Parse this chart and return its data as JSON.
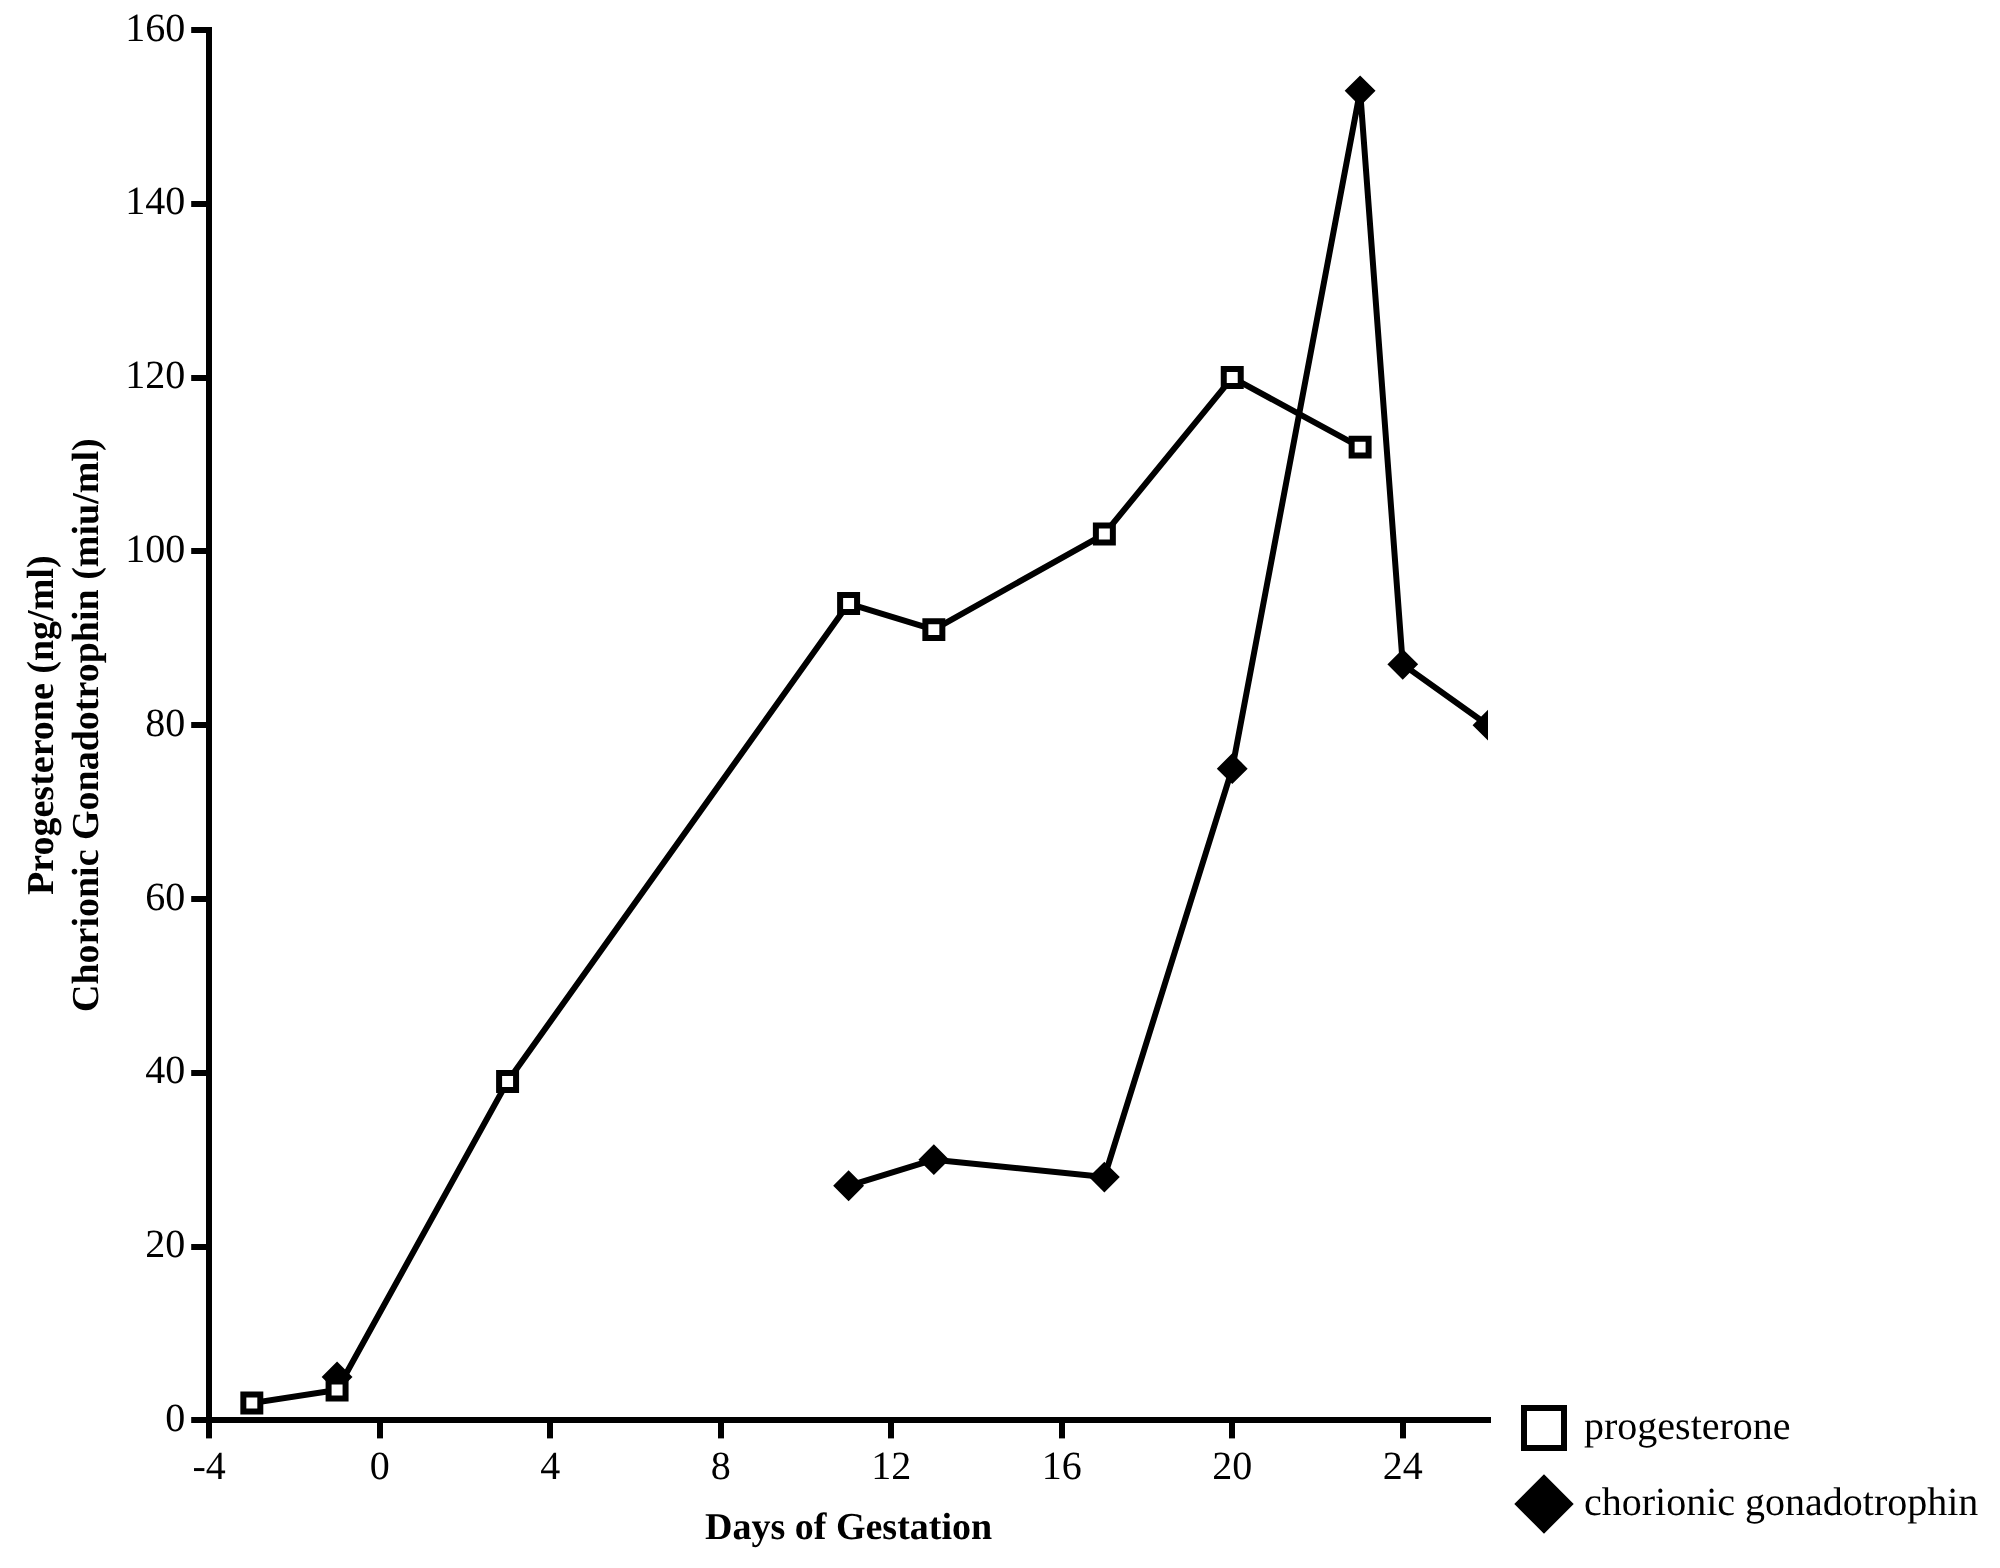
{
  "chart_data": {
    "type": "line",
    "xlabel": "Days of Gestation",
    "ylabel": "Progesterone (ng/ml)\nChorionic Gonadotrophin (miu/ml)",
    "series": [
      {
        "name": "progesterone",
        "color": "#000000",
        "marker": "square",
        "x": [
          -3,
          -1,
          3,
          11,
          13,
          17,
          20,
          23
        ],
        "values": [
          2,
          3.5,
          39,
          94,
          91,
          102,
          120,
          112
        ]
      },
      {
        "name": "chorionic gonadotrophin",
        "color": "#000000",
        "marker": "diamond",
        "x": [
          -1,
          3,
          11,
          13,
          17,
          20,
          23,
          24,
          26
        ],
        "values": [
          5,
          null,
          27,
          30,
          28,
          75,
          153,
          87,
          80
        ]
      }
    ],
    "xlim": [
      -4,
      26
    ],
    "xticks": [
      -4,
      0,
      4,
      8,
      12,
      16,
      20,
      24
    ],
    "ylim": [
      0,
      160
    ],
    "yticks": [
      0,
      20,
      40,
      60,
      80,
      100,
      120,
      140,
      160
    ],
    "grid": false,
    "legend": "bottom right",
    "line_style": "solid"
  }
}
